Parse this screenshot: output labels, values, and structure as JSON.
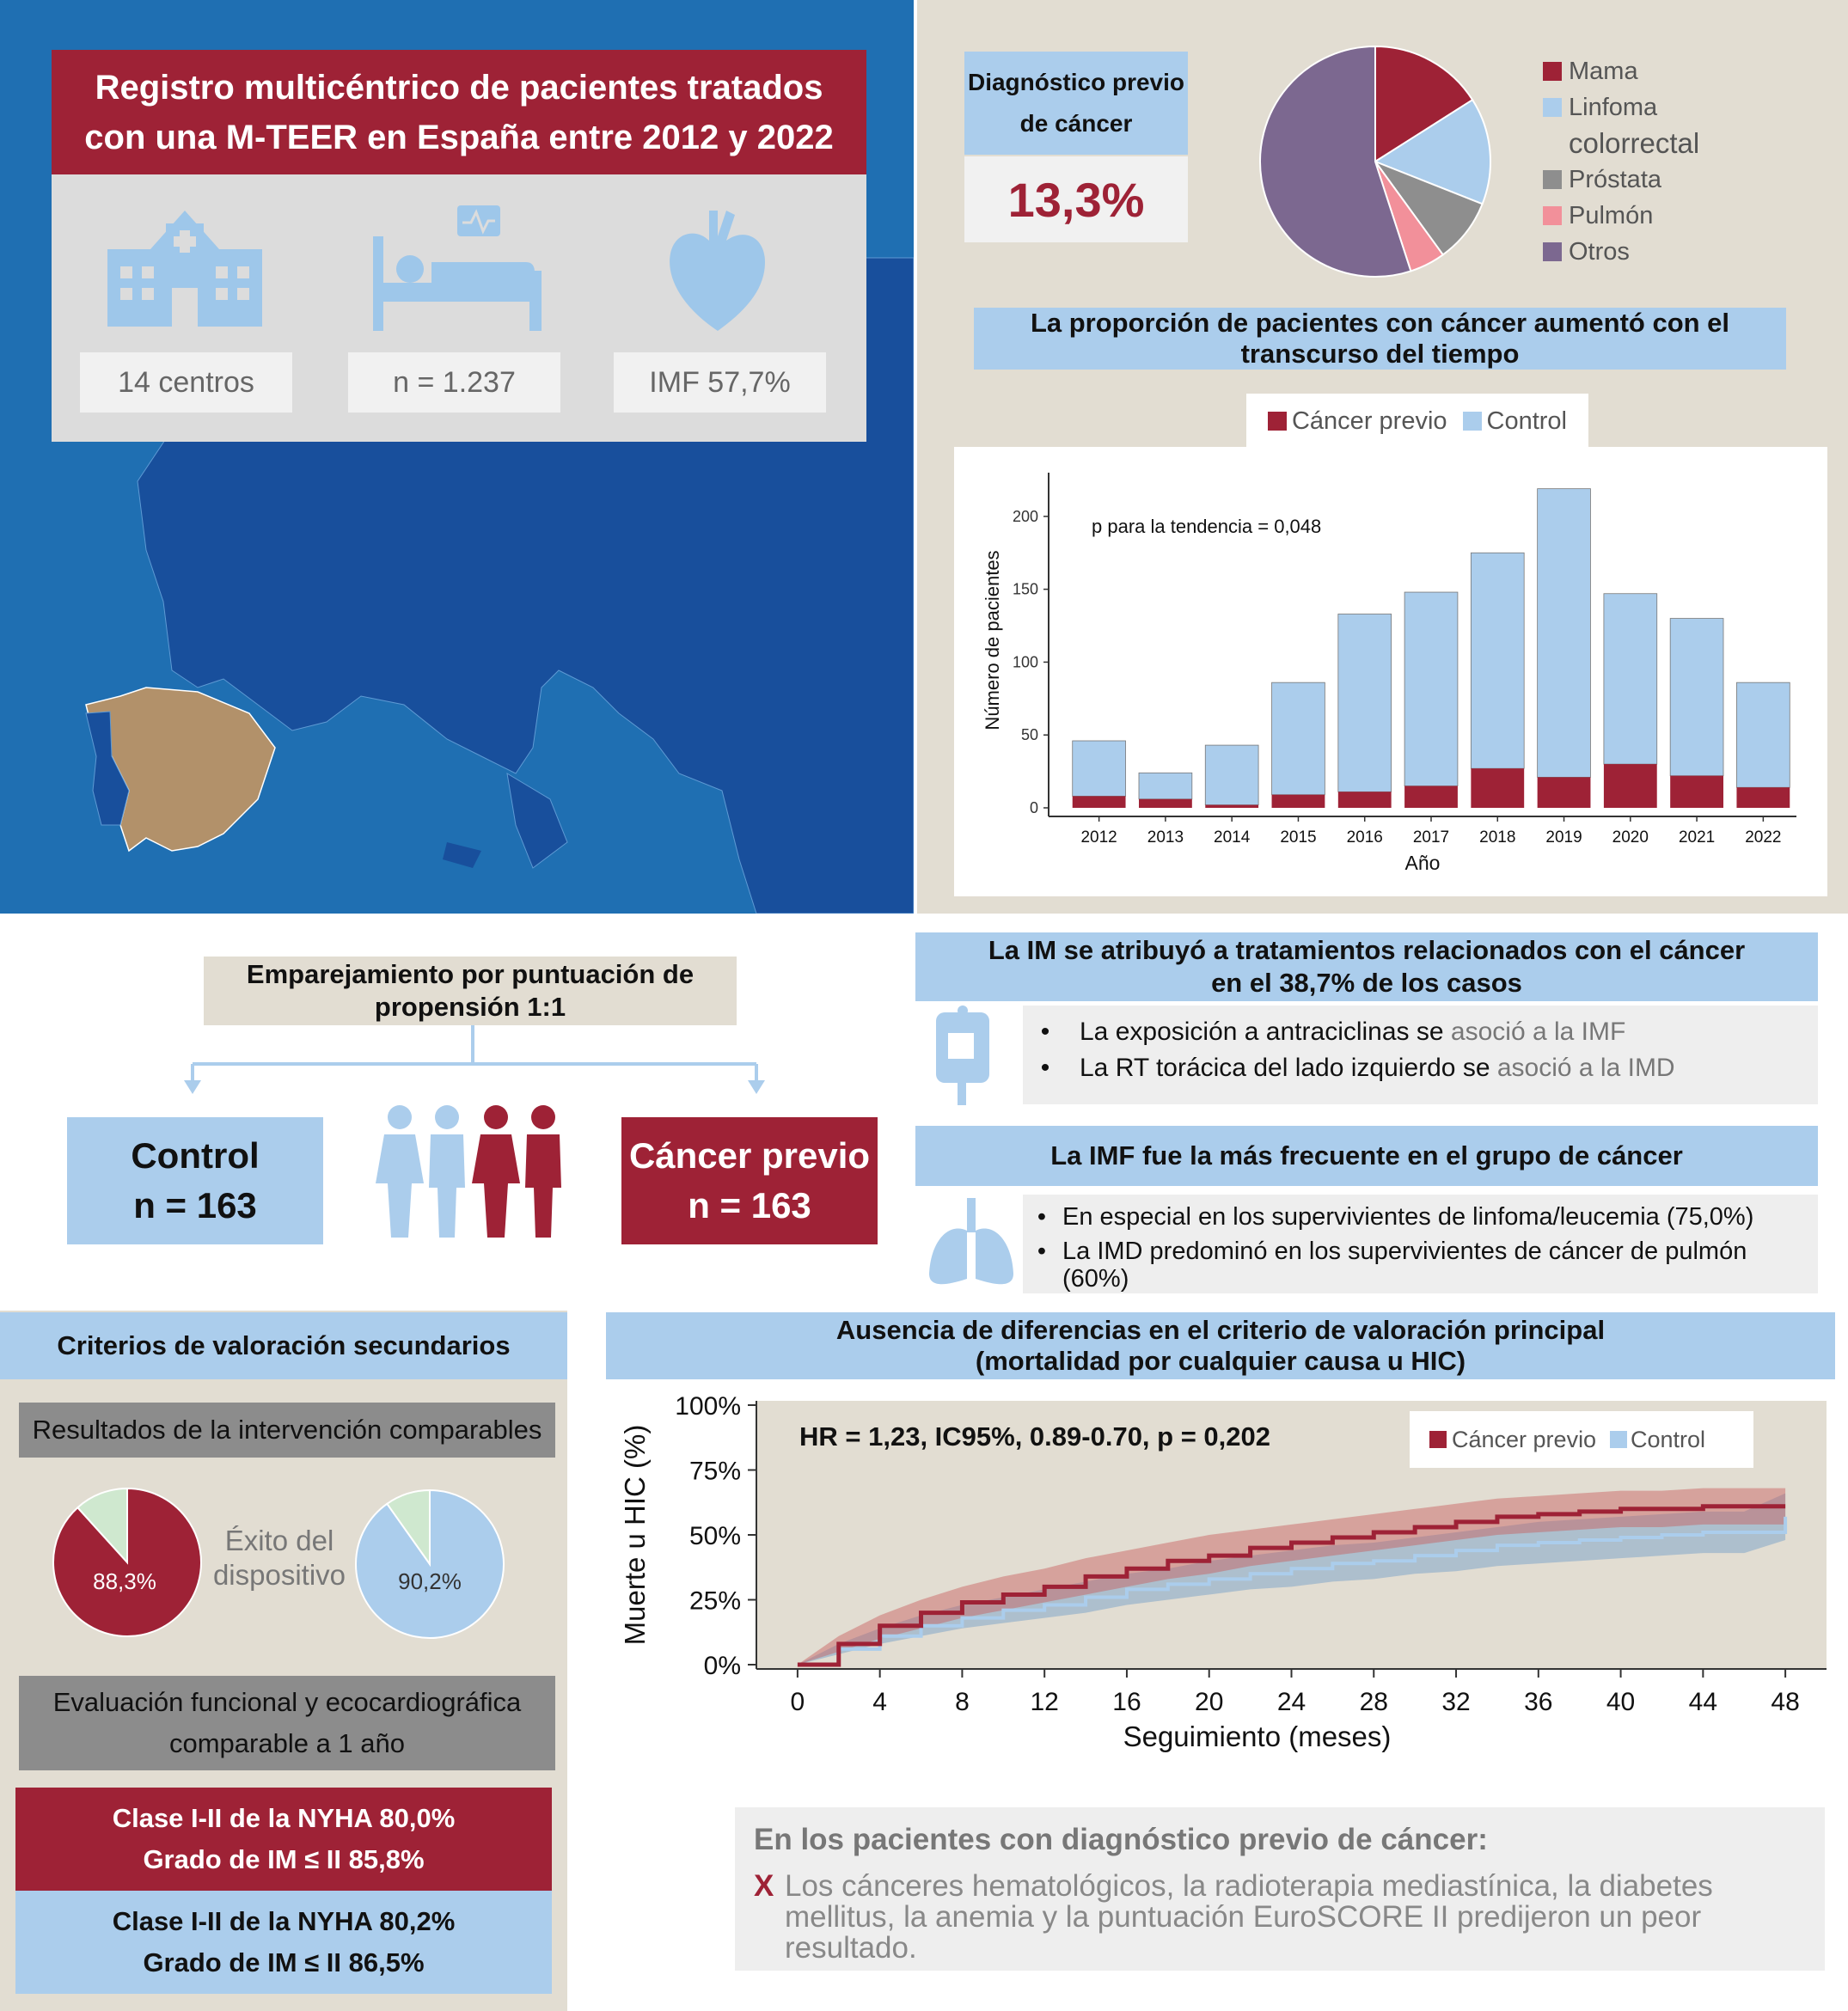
{
  "registry": {
    "title_line1": "Registro multicéntrico de pacientes tratados",
    "title_line2": "con una M-TEER en España entre 2012 y 2022",
    "stats": [
      {
        "icon": "hospital-icon",
        "label": "14 centros"
      },
      {
        "icon": "patient-bed-icon",
        "label": "n = 1.237"
      },
      {
        "icon": "heart-icon",
        "label": "IMF 57,7%"
      }
    ]
  },
  "cancer_dx": {
    "label_line1": "Diagnóstico previo",
    "label_line2": "de cáncer",
    "value": "13,3%",
    "legend": [
      {
        "label": "Mama",
        "color": "#9e2236"
      },
      {
        "label": "Linfoma",
        "color": "#abcdec"
      },
      {
        "label": "colorrectal",
        "color": ""
      },
      {
        "label": "Próstata",
        "color": "#8e8e8e"
      },
      {
        "label": "Pulmón",
        "color": "#f2909a"
      },
      {
        "label": "Otros",
        "color": "#7c6890"
      }
    ]
  },
  "trend": {
    "header_line1": "La proporción de pacientes con cáncer aumentó con el",
    "header_line2": "transcurso del tiempo",
    "legend": [
      {
        "label": "Cáncer previo",
        "color": "#9e2236"
      },
      {
        "label": "Control",
        "color": "#abcdec"
      }
    ]
  },
  "matching": {
    "title_line1": "Emparejamiento por puntuación de",
    "title_line2": "propensión 1:1",
    "control_title": "Control",
    "control_n": "n = 163",
    "cancer_title": "Cáncer previo",
    "cancer_n": "n = 163"
  },
  "im_treatment": {
    "header_line1": "La IM se atribuyó a tratamientos relacionados con el cáncer",
    "header_line2": "en el 38,7% de los casos",
    "bullets": [
      {
        "dark": "La exposición a antraciclinas se",
        "light": " asoció a la IMF"
      },
      {
        "dark": "La RT torácica del lado izquierdo se",
        "light": " asoció a la IMD"
      }
    ]
  },
  "imf_freq": {
    "header": "La IMF fue la más frecuente en el grupo de cáncer",
    "bullets": [
      "En especial en los supervivientes de linfoma/leucemia (75,0%)",
      "La IMD predominó en los supervivientes de cáncer de pulmón (60%)"
    ]
  },
  "secondary": {
    "header": "Criterios de valoración secundarios",
    "results_label": "Resultados de la intervención comparables",
    "device_success_line1": "Éxito del",
    "device_success_line2": "dispositivo",
    "cancer_success": "88,3%",
    "control_success": "90,2%",
    "eval_line1": "Evaluación funcional y ecocardiográfica",
    "eval_line2": "comparable a 1 año",
    "cancer_nyha": "Clase I-II de la NYHA 80,0%",
    "cancer_im": "Grado de IM ≤ II 85,8%",
    "control_nyha": "Clase I-II de la NYHA 80,2%",
    "control_im": "Grado de IM ≤ II 86,5%"
  },
  "primary": {
    "header_line1": "Ausencia de diferencias en el criterio de valoración principal",
    "header_line2": "(mortalidad por cualquier causa u HIC)",
    "conclusion_title": "En los pacientes con diagnóstico previo de cáncer:",
    "conclusion_mark": "X",
    "conclusion_line1": "Los cánceres hematológicos, la radioterapia mediastínica, la diabetes",
    "conclusion_line2": "mellitus, la anemia y la puntuación EuroSCORE II predijeron un peor",
    "conclusion_line3": "resultado."
  },
  "chart_data": [
    {
      "type": "pie",
      "title": "",
      "slices": [
        {
          "label": "Mama",
          "value": 16,
          "color": "#9e2236"
        },
        {
          "label": "Linfoma colorrectal",
          "value": 15,
          "color": "#abcdec"
        },
        {
          "label": "Próstata",
          "value": 9,
          "color": "#8e8e8e"
        },
        {
          "label": "Pulmón",
          "value": 5,
          "color": "#f2909a"
        },
        {
          "label": "Otros",
          "value": 55,
          "color": "#7c6890"
        }
      ]
    },
    {
      "type": "bar",
      "stacked": true,
      "categories": [
        "2012",
        "2013",
        "2014",
        "2015",
        "2016",
        "2017",
        "2018",
        "2019",
        "2020",
        "2021",
        "2022"
      ],
      "series": [
        {
          "name": "Cáncer previo",
          "color": "#9e2236",
          "values": [
            8,
            6,
            2,
            9,
            11,
            15,
            27,
            21,
            30,
            22,
            14
          ]
        },
        {
          "name": "Control",
          "color": "#abcdec",
          "values": [
            38,
            18,
            41,
            77,
            122,
            133,
            148,
            198,
            117,
            108,
            72
          ]
        }
      ],
      "xlabel": "Año",
      "ylabel": "Número de pacientes",
      "ylim": [
        0,
        230
      ],
      "yticks": [
        0,
        50,
        100,
        150,
        200
      ],
      "annotation": "p para la tendencia = 0,048",
      "grid": false
    },
    {
      "type": "line",
      "xlabel": "Seguimiento (meses)",
      "ylabel": "Muerte u HIC (%)",
      "xticks": [
        0,
        4,
        8,
        12,
        16,
        20,
        24,
        28,
        32,
        36,
        40,
        44,
        48
      ],
      "yticks": [
        "0%",
        "25%",
        "50%",
        "75%",
        "100%"
      ],
      "xlim": [
        -2,
        50
      ],
      "ylim": [
        0,
        100
      ],
      "annotation": "HR = 1,23, IC95%, 0.89-0.70, p = 0,202",
      "legend_position": "top-right",
      "series": [
        {
          "name": "Cáncer previo",
          "color": "#9e2236",
          "x": [
            0,
            2,
            4,
            6,
            8,
            10,
            12,
            14,
            16,
            18,
            20,
            22,
            24,
            26,
            28,
            30,
            32,
            34,
            36,
            38,
            40,
            42,
            44,
            46,
            48
          ],
          "y": [
            0,
            8,
            15,
            20,
            24,
            27,
            30,
            34,
            37,
            40,
            42,
            45,
            47,
            49,
            51,
            53,
            55,
            57,
            58,
            59,
            60,
            60,
            61,
            61,
            61
          ],
          "lower": [
            0,
            5,
            10,
            14,
            18,
            21,
            24,
            27,
            30,
            33,
            35,
            38,
            40,
            42,
            44,
            46,
            48,
            50,
            51,
            52,
            53,
            53,
            54,
            54,
            54
          ],
          "upper": [
            0,
            11,
            19,
            25,
            30,
            34,
            37,
            41,
            44,
            47,
            50,
            52,
            54,
            56,
            58,
            60,
            62,
            64,
            65,
            66,
            67,
            67,
            68,
            68,
            68
          ]
        },
        {
          "name": "Control",
          "color": "#abcdec",
          "x": [
            0,
            2,
            4,
            6,
            8,
            10,
            12,
            14,
            16,
            18,
            20,
            22,
            24,
            26,
            28,
            30,
            32,
            34,
            36,
            38,
            40,
            42,
            44,
            46,
            48
          ],
          "y": [
            0,
            6,
            11,
            15,
            18,
            21,
            23,
            26,
            29,
            31,
            33,
            35,
            37,
            39,
            40,
            42,
            44,
            46,
            47,
            48,
            49,
            50,
            51,
            51,
            57
          ],
          "lower": [
            0,
            4,
            8,
            11,
            14,
            16,
            18,
            20,
            23,
            25,
            27,
            29,
            30,
            32,
            33,
            35,
            36,
            38,
            39,
            40,
            41,
            42,
            43,
            43,
            48
          ],
          "upper": [
            0,
            8,
            14,
            19,
            23,
            26,
            29,
            32,
            35,
            37,
            40,
            42,
            44,
            46,
            47,
            49,
            51,
            53,
            55,
            56,
            57,
            58,
            59,
            59,
            66
          ]
        }
      ]
    }
  ]
}
